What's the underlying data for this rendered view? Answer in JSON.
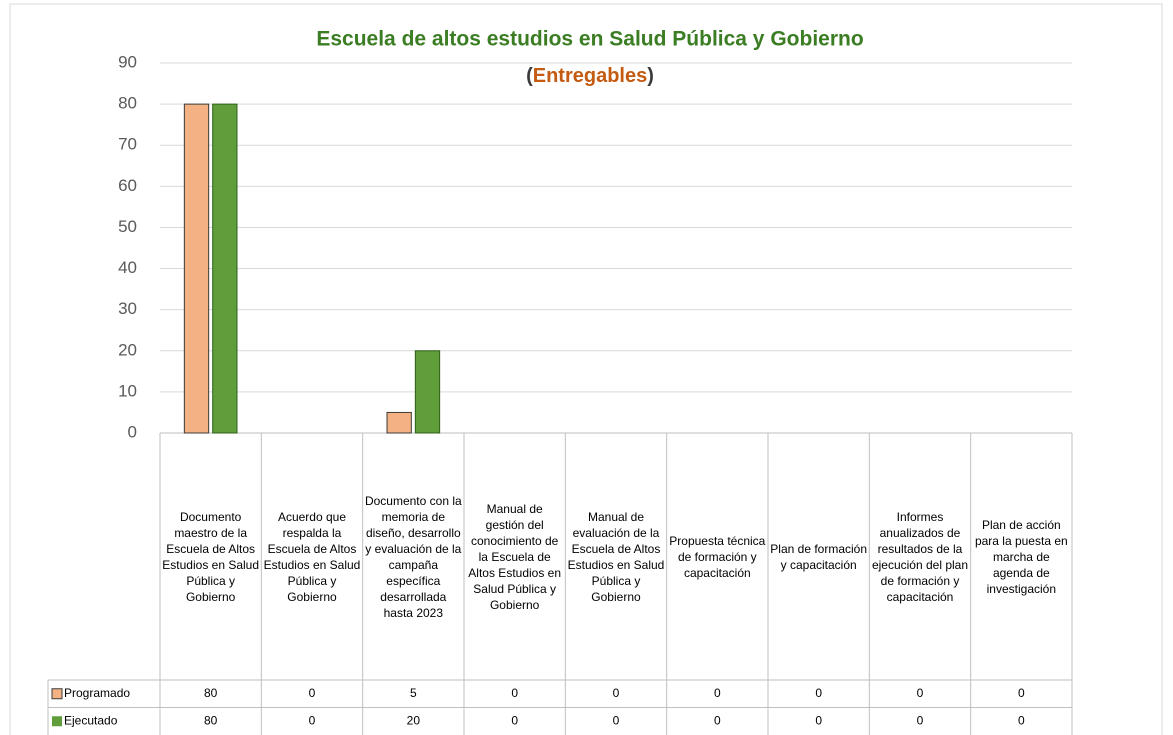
{
  "chart_data": {
    "type": "bar",
    "title": "Escuela de altos estudios en Salud Pública y Gobierno",
    "subtitle_parts": [
      "(",
      "Entregables",
      ")"
    ],
    "categories": [
      "Documento maestro de la Escuela de Altos Estudios en Salud Pública y Gobierno",
      "Acuerdo que respalda la Escuela de Altos Estudios en Salud Pública y Gobierno",
      "Documento con la memoria de diseño, desarrollo y evaluación de la campaña específica desarrollada hasta 2023",
      "Manual de gestión del conocimiento de la Escuela de Altos Estudios en Salud Pública y Gobierno",
      "Manual de evaluación de la Escuela de Altos Estudios en Salud Pública y Gobierno",
      "Propuesta técnica de formación y capacitación",
      "Plan de formación y capacitación",
      "Informes anualizados de resultados de la ejecución del plan de formación y capacitación",
      "Plan de acción para la puesta en marcha de agenda de investigación"
    ],
    "series": [
      {
        "name": "Programado",
        "color": "#f4b183",
        "values": [
          80,
          0,
          5,
          0,
          0,
          0,
          0,
          0,
          0
        ]
      },
      {
        "name": "Ejecutado",
        "color": "#5f9e3a",
        "values": [
          80,
          0,
          20,
          0,
          0,
          0,
          0,
          0,
          0
        ]
      }
    ],
    "ylim": [
      0,
      90
    ],
    "yticks": [
      0,
      10,
      20,
      30,
      40,
      50,
      60,
      70,
      80,
      90
    ],
    "grid": true
  }
}
